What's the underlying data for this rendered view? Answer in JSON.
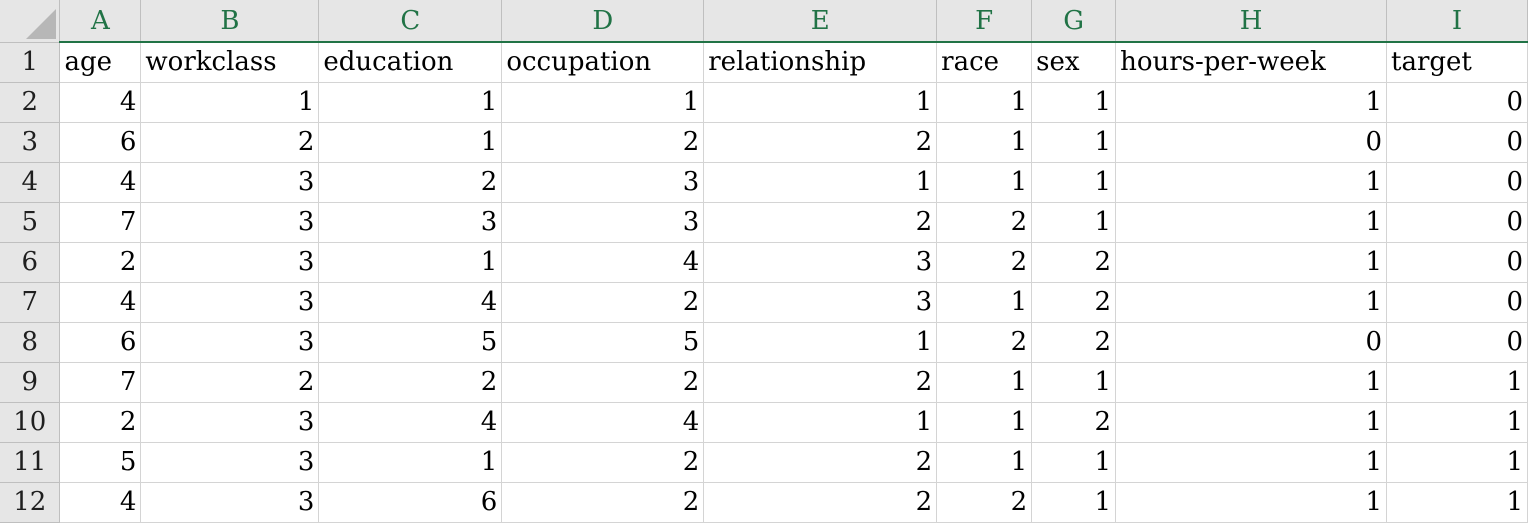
{
  "spreadsheet": {
    "columns": [
      "A",
      "B",
      "C",
      "D",
      "E",
      "F",
      "G",
      "H",
      "I"
    ],
    "row_numbers": [
      "1",
      "2",
      "3",
      "4",
      "5",
      "6",
      "7",
      "8",
      "9",
      "10",
      "11",
      "12"
    ],
    "header_row": [
      "age",
      "workclass",
      "education",
      "occupation",
      "relationship",
      "race",
      "sex",
      "hours-per-week",
      "target"
    ],
    "rows": [
      [
        "4",
        "1",
        "1",
        "1",
        "1",
        "1",
        "1",
        "1",
        "0"
      ],
      [
        "6",
        "2",
        "1",
        "2",
        "2",
        "1",
        "1",
        "0",
        "0"
      ],
      [
        "4",
        "3",
        "2",
        "3",
        "1",
        "1",
        "1",
        "1",
        "0"
      ],
      [
        "7",
        "3",
        "3",
        "3",
        "2",
        "2",
        "1",
        "1",
        "0"
      ],
      [
        "2",
        "3",
        "1",
        "4",
        "3",
        "2",
        "2",
        "1",
        "0"
      ],
      [
        "4",
        "3",
        "4",
        "2",
        "3",
        "1",
        "2",
        "1",
        "0"
      ],
      [
        "6",
        "3",
        "5",
        "5",
        "1",
        "2",
        "2",
        "0",
        "0"
      ],
      [
        "7",
        "2",
        "2",
        "2",
        "2",
        "1",
        "1",
        "1",
        "1"
      ],
      [
        "2",
        "3",
        "4",
        "4",
        "1",
        "1",
        "2",
        "1",
        "1"
      ],
      [
        "5",
        "3",
        "1",
        "2",
        "2",
        "1",
        "1",
        "1",
        "1"
      ],
      [
        "4",
        "3",
        "6",
        "2",
        "2",
        "2",
        "1",
        "1",
        "1"
      ]
    ]
  },
  "colors": {
    "header_accent": "#217346",
    "header_bg": "#e6e6e6",
    "grid_line": "#d4d4d4"
  }
}
